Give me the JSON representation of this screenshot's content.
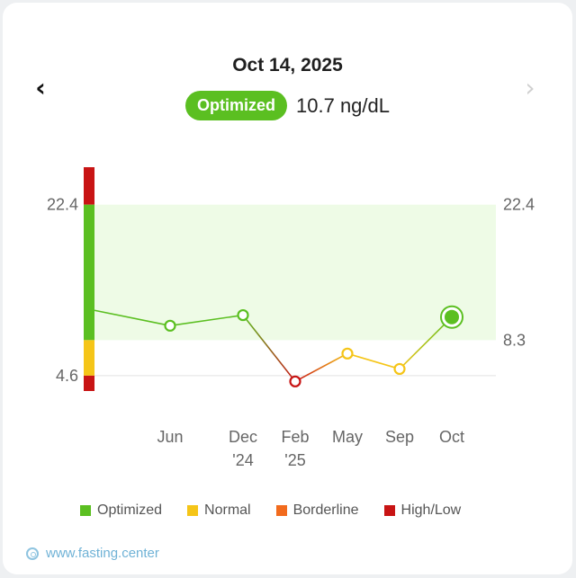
{
  "header": {
    "date": "Oct 14, 2025",
    "status": "Optimized",
    "reading": "10.7 ng/dL",
    "prev_icon": "chevron-left-icon",
    "next_icon": "chevron-right-icon"
  },
  "chart_data": {
    "type": "line",
    "title": "",
    "xlabel": "",
    "ylabel": "",
    "ylim": [
      3.0,
      26.3
    ],
    "left_ticks": [
      4.6,
      22.4
    ],
    "right_ticks": [
      8.3,
      22.4
    ],
    "optimized_band": [
      8.3,
      22.4
    ],
    "x_labels": [
      {
        "line1": "Jun",
        "line2": ""
      },
      {
        "line1": "Dec",
        "line2": "'24"
      },
      {
        "line1": "Feb",
        "line2": "'25"
      },
      {
        "line1": "May",
        "line2": ""
      },
      {
        "line1": "Sep",
        "line2": ""
      },
      {
        "line1": "Oct",
        "line2": ""
      }
    ],
    "start_value": 11.4,
    "points": [
      {
        "label": "Jun",
        "value": 9.8,
        "status": "Optimized"
      },
      {
        "label": "Dec '24",
        "value": 10.9,
        "status": "Optimized"
      },
      {
        "label": "Feb '25",
        "value": 4.0,
        "status": "High/Low"
      },
      {
        "label": "May",
        "value": 6.9,
        "status": "Normal"
      },
      {
        "label": "Sep",
        "value": 5.3,
        "status": "Normal"
      },
      {
        "label": "Oct",
        "value": 10.7,
        "status": "Optimized",
        "selected": true
      }
    ],
    "range_bar": [
      {
        "from": 22.4,
        "to": 26.3,
        "status": "High/Low"
      },
      {
        "from": 8.3,
        "to": 22.4,
        "status": "Optimized"
      },
      {
        "from": 4.6,
        "to": 8.3,
        "status": "Normal"
      },
      {
        "from": 3.0,
        "to": 4.6,
        "status": "High/Low"
      }
    ],
    "legend": [
      {
        "label": "Optimized",
        "color": "#5bbf21"
      },
      {
        "label": "Normal",
        "color": "#f5c518"
      },
      {
        "label": "Borderline",
        "color": "#f26b1d"
      },
      {
        "label": "High/Low",
        "color": "#c81414"
      }
    ]
  },
  "colors": {
    "Optimized": "#5bbf21",
    "Normal": "#f5c518",
    "Borderline": "#f26b1d",
    "High/Low": "#c81414",
    "band": "#eefbe6"
  },
  "footer": {
    "icon": "swirl-logo-icon",
    "text": "www.fasting.center"
  }
}
